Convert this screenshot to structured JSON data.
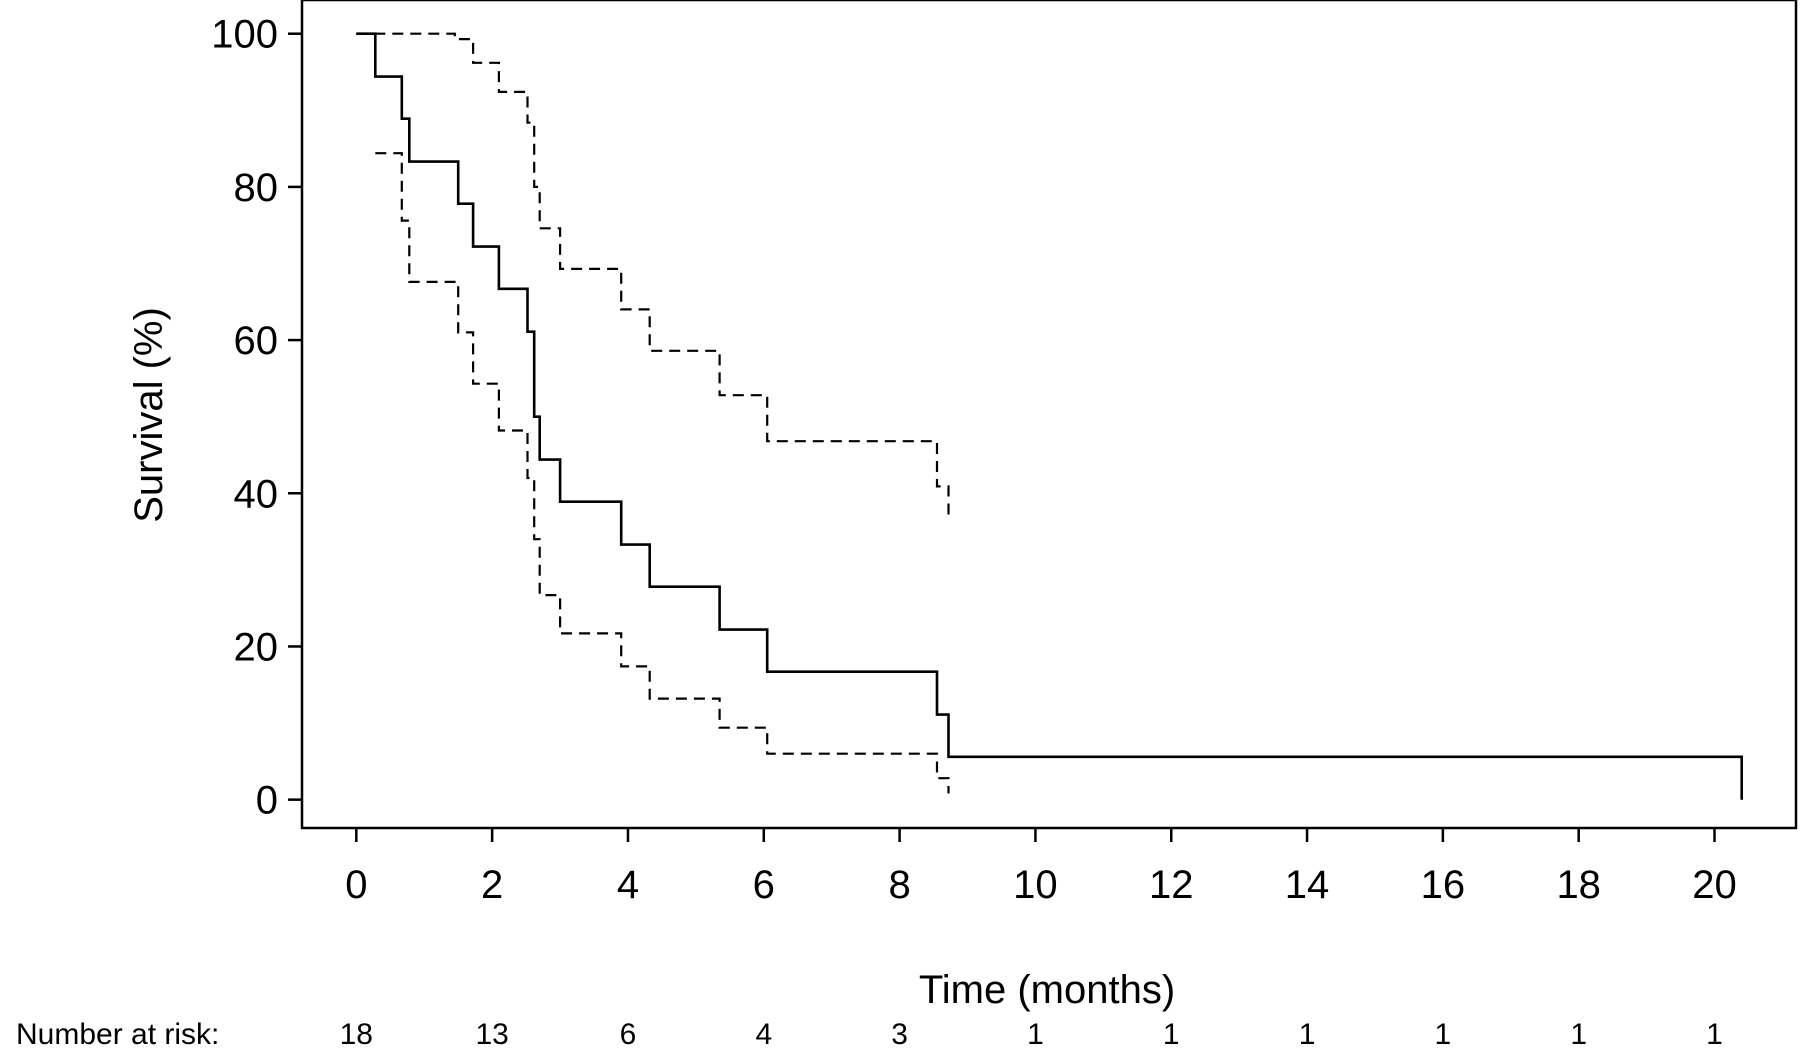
{
  "chart_data": {
    "type": "line",
    "subtype": "kaplan-meier",
    "title": "",
    "xlabel": "Time (months)",
    "ylabel": "Survival (%)",
    "xlim": [
      -0.8,
      21.2
    ],
    "ylim": [
      -3.7,
      104.4
    ],
    "xticks": [
      "0",
      "2",
      "4",
      "6",
      "8",
      "10",
      "12",
      "14",
      "16",
      "18",
      "20"
    ],
    "yticks": [
      "0",
      "20",
      "40",
      "60",
      "80",
      "100"
    ],
    "grid": false,
    "legend": "none",
    "line_color": "#000000",
    "series": [
      {
        "style": "solid",
        "steps": [
          [
            0,
            100
          ],
          [
            0.28,
            94.4
          ],
          [
            0.67,
            88.9
          ],
          [
            0.78,
            83.3
          ],
          [
            1.5,
            77.8
          ],
          [
            1.72,
            72.2
          ],
          [
            2.1,
            66.7
          ],
          [
            2.52,
            61.1
          ],
          [
            2.62,
            50.0
          ],
          [
            2.7,
            44.4
          ],
          [
            3.0,
            38.9
          ],
          [
            3.9,
            33.3
          ],
          [
            4.32,
            27.8
          ],
          [
            5.35,
            22.2
          ],
          [
            6.05,
            16.7
          ],
          [
            8.55,
            11.1
          ],
          [
            8.72,
            5.6
          ],
          [
            20.4,
            0
          ]
        ],
        "end_x": 20.4
      },
      {
        "style": "dashed",
        "steps": [
          [
            0,
            100
          ],
          [
            1.45,
            99.3
          ],
          [
            1.72,
            96.2
          ],
          [
            2.1,
            92.4
          ],
          [
            2.52,
            88.4
          ],
          [
            2.62,
            80.0
          ],
          [
            2.7,
            74.6
          ],
          [
            3.0,
            69.3
          ],
          [
            3.9,
            64.0
          ],
          [
            4.32,
            58.6
          ],
          [
            5.35,
            52.8
          ],
          [
            6.05,
            46.8
          ],
          [
            8.55,
            40.9
          ],
          [
            8.72,
            37.0
          ]
        ],
        "end_x": 8.72
      },
      {
        "style": "dashed",
        "steps": [
          [
            0.28,
            84.4
          ],
          [
            0.67,
            75.6
          ],
          [
            0.78,
            67.6
          ],
          [
            1.5,
            61.0
          ],
          [
            1.72,
            54.3
          ],
          [
            2.1,
            48.2
          ],
          [
            2.52,
            42.0
          ],
          [
            2.62,
            34.0
          ],
          [
            2.7,
            26.7
          ],
          [
            3.0,
            21.7
          ],
          [
            3.9,
            17.4
          ],
          [
            4.32,
            13.2
          ],
          [
            5.35,
            9.4
          ],
          [
            6.05,
            6.0
          ],
          [
            8.55,
            2.8
          ],
          [
            8.72,
            0.8
          ]
        ],
        "end_x": 8.72
      }
    ],
    "risk_table": {
      "label": "Number at risk:",
      "times": [
        0,
        2,
        4,
        6,
        8,
        10,
        12,
        14,
        16,
        18,
        20
      ],
      "values": [
        "18",
        "13",
        "6",
        "4",
        "3",
        "1",
        "1",
        "1",
        "1",
        "1",
        "1"
      ]
    }
  }
}
